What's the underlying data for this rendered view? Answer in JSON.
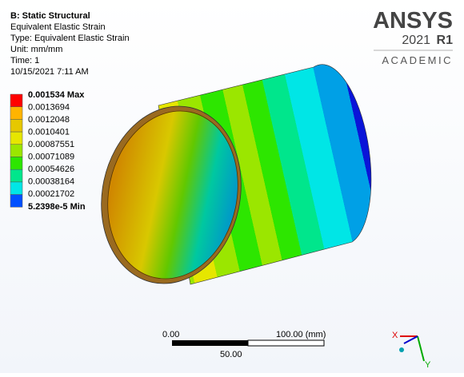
{
  "header": {
    "title": "B: Static Structural",
    "lines": [
      "Equivalent Elastic Strain",
      "Type: Equivalent Elastic Strain",
      "Unit: mm/mm",
      "Time: 1",
      "10/15/2021 7:11 AM"
    ]
  },
  "legend": {
    "labels": [
      "0.001534 Max",
      "0.0013694",
      "0.0012048",
      "0.0010401",
      "0.00087551",
      "0.00071089",
      "0.00054626",
      "0.00038164",
      "0.00021702",
      "5.2398e-5 Min"
    ]
  },
  "logo": {
    "brand": "ANSYS",
    "version": "2021",
    "release": "R1",
    "edition": "ACADEMIC"
  },
  "scale_bar": {
    "start": "0.00",
    "end": "100.00 (mm)",
    "middle": "50.00"
  },
  "triad": {
    "x": "X",
    "y": "Y"
  }
}
